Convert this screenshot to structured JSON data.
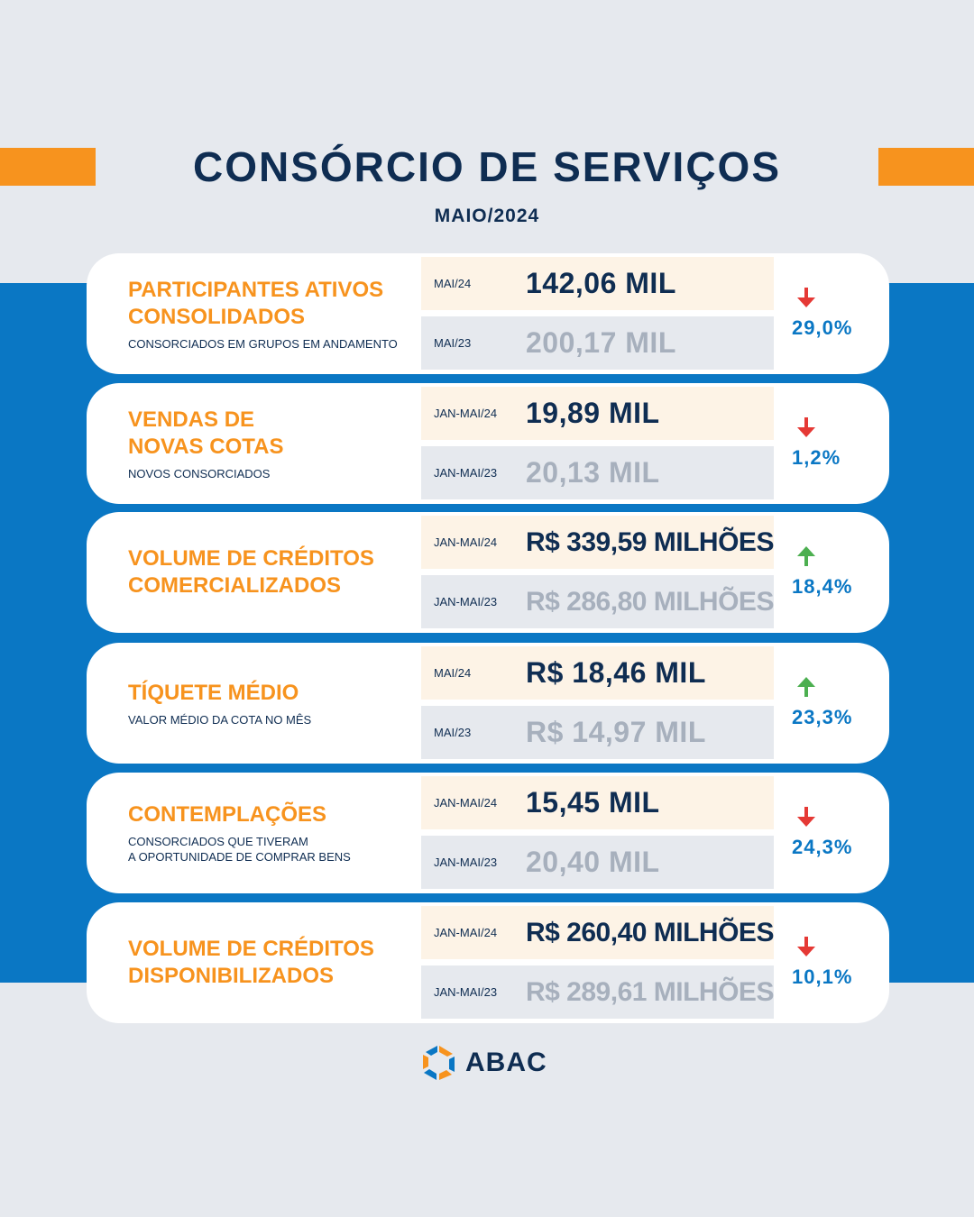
{
  "header": {
    "title": "CONSÓRCIO DE SERVIÇOS",
    "subtitle": "MAIO/2024"
  },
  "colors": {
    "orange": "#f7931e",
    "blue": "#0a77c4",
    "navy": "#0f2d52",
    "up": "#4caf50",
    "down": "#e53935"
  },
  "cards": [
    {
      "title": "PARTICIPANTES ATIVOS\nCONSOLIDADOS",
      "subtitle": "CONSORCIADOS EM GRUPOS EM ANDAMENTO",
      "current": {
        "period": "MAI/24",
        "value": "142,06 MIL"
      },
      "previous": {
        "period": "MAI/23",
        "value": "200,17 MIL"
      },
      "change": {
        "direction": "down",
        "icon": "arrow-down-icon",
        "percent": "29,0%"
      }
    },
    {
      "title": "VENDAS DE\nNOVAS COTAS",
      "subtitle": "NOVOS CONSORCIADOS",
      "current": {
        "period": "JAN-MAI/24",
        "value": "19,89 MIL"
      },
      "previous": {
        "period": "JAN-MAI/23",
        "value": "20,13 MIL"
      },
      "change": {
        "direction": "down",
        "icon": "arrow-down-icon",
        "percent": "1,2%"
      }
    },
    {
      "title": "VOLUME DE CRÉDITOS\nCOMERCIALIZADOS",
      "subtitle": "",
      "current": {
        "period": "JAN-MAI/24",
        "value": "R$ 339,59 MILHÕES"
      },
      "previous": {
        "period": "JAN-MAI/23",
        "value": "R$ 286,80 MILHÕES"
      },
      "change": {
        "direction": "up",
        "icon": "arrow-up-icon",
        "percent": "18,4%"
      }
    },
    {
      "title": "TÍQUETE MÉDIO",
      "subtitle": "VALOR MÉDIO DA COTA NO MÊS",
      "current": {
        "period": "MAI/24",
        "value": "R$ 18,46 MIL"
      },
      "previous": {
        "period": "MAI/23",
        "value": "R$ 14,97 MIL"
      },
      "change": {
        "direction": "up",
        "icon": "arrow-up-icon",
        "percent": "23,3%"
      }
    },
    {
      "title": "CONTEMPLAÇÕES",
      "subtitle": "CONSORCIADOS QUE TIVERAM\nA OPORTUNIDADE DE COMPRAR BENS",
      "current": {
        "period": "JAN-MAI/24",
        "value": "15,45 MIL"
      },
      "previous": {
        "period": "JAN-MAI/23",
        "value": "20,40 MIL"
      },
      "change": {
        "direction": "down",
        "icon": "arrow-down-icon",
        "percent": "24,3%"
      }
    },
    {
      "title": "VOLUME DE CRÉDITOS\nDISPONIBILIZADOS",
      "subtitle": "",
      "current": {
        "period": "JAN-MAI/24",
        "value": "R$ 260,40 MILHÕES"
      },
      "previous": {
        "period": "JAN-MAI/23",
        "value": "R$ 289,61 MILHÕES"
      },
      "change": {
        "direction": "down",
        "icon": "arrow-down-icon",
        "percent": "10,1%"
      }
    }
  ],
  "footer": {
    "logo_text": "ABAC",
    "logo_icon": "abac-logo-icon"
  }
}
